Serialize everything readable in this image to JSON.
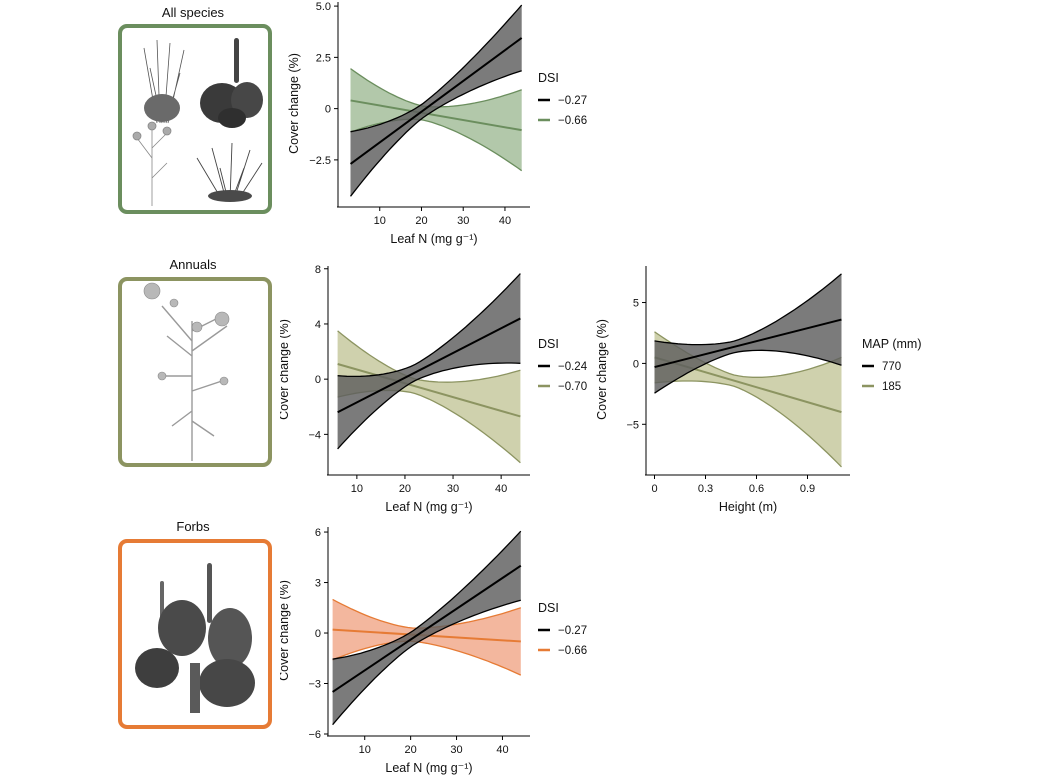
{
  "panels": {
    "all": {
      "label": "All species",
      "color": "#6b8e5e",
      "icons": [
        "grass-icon",
        "plantain-icon",
        "flower-icon",
        "tussock-icon"
      ]
    },
    "annuals": {
      "label": "Annuals",
      "color": "#8c9461",
      "icons": [
        "annual-flower-icon"
      ]
    },
    "forbs": {
      "label": "Forbs",
      "color": "#e67b35",
      "icons": [
        "plantain-icon"
      ]
    }
  },
  "chart_data": [
    {
      "type": "line",
      "panel": "All species",
      "xlabel": "Leaf N (mg g⁻¹)",
      "ylabel": "Cover change (%)",
      "xticks": [
        10,
        20,
        30,
        40
      ],
      "yticks": [
        "5.0",
        "2.5",
        "0",
        "−2.5"
      ],
      "ytick_values": [
        5.0,
        2.5,
        0,
        -2.5
      ],
      "xlim": [
        0,
        46
      ],
      "ylim": [
        -4.7,
        5.2
      ],
      "legend_title": "DSI",
      "series": [
        {
          "name": "−0.27",
          "color": "#000000",
          "fill": "#5e5e5e",
          "x": [
            3,
            44
          ],
          "mean": [
            -2.7,
            3.45
          ],
          "lower": [
            -4.3,
            1.95
          ],
          "upper": [
            -1.15,
            5.15
          ]
        },
        {
          "name": "−0.66",
          "color": "#6b8e5e",
          "fill": "#98b58d",
          "x": [
            3,
            44
          ],
          "mean": [
            0.4,
            -1.05
          ],
          "lower": [
            -1.15,
            -3.05
          ],
          "upper": [
            1.95,
            0.9
          ]
        }
      ]
    },
    {
      "type": "line",
      "panel": "Annuals",
      "xlabel": "Leaf N (mg g⁻¹)",
      "ylabel": "Cover change (%)",
      "xticks": [
        10,
        20,
        30,
        40
      ],
      "yticks": [
        "8",
        "4",
        "0",
        "−4"
      ],
      "ytick_values": [
        8,
        4,
        0,
        -4
      ],
      "xlim": [
        4,
        46
      ],
      "ylim": [
        -6.8,
        8.2
      ],
      "legend_title": "DSI",
      "series": [
        {
          "name": "−0.24",
          "color": "#000000",
          "fill": "#5e5e5e",
          "x": [
            6,
            44
          ],
          "mean": [
            -2.4,
            4.4
          ],
          "lower": [
            -5.1,
            1.2
          ],
          "upper": [
            0.2,
            7.7
          ]
        },
        {
          "name": "−0.70",
          "color": "#8c9461",
          "fill": "#bfc291",
          "x": [
            6,
            44
          ],
          "mean": [
            1.1,
            -2.7
          ],
          "lower": [
            -1.2,
            -6.1
          ],
          "upper": [
            3.6,
            0.6
          ]
        }
      ]
    },
    {
      "type": "line",
      "panel": "Annuals",
      "xlabel": "Height (m)",
      "ylabel": "Cover change (%)",
      "xticks": [
        "0",
        "0.3",
        "0.6",
        "0.9"
      ],
      "xtick_values": [
        0,
        0.3,
        0.6,
        0.9
      ],
      "yticks": [
        "5",
        "0",
        "−5"
      ],
      "ytick_values": [
        5,
        0,
        -5
      ],
      "xlim": [
        -0.05,
        1.15
      ],
      "ylim": [
        -9,
        8
      ],
      "legend_title": "MAP (mm)",
      "series": [
        {
          "name": "770",
          "color": "#000000",
          "fill": "#5e5e5e",
          "x": [
            0,
            1.1
          ],
          "mean": [
            -0.3,
            3.6
          ],
          "lower": [
            -2.5,
            -0.1
          ],
          "upper": [
            1.8,
            7.4
          ]
        },
        {
          "name": "185",
          "color": "#8c9461",
          "fill": "#bfc291",
          "x": [
            0,
            1.1
          ],
          "mean": [
            0.5,
            -4.0
          ],
          "lower": [
            -1.7,
            -8.4
          ],
          "upper": [
            2.5,
            0.6
          ]
        }
      ]
    },
    {
      "type": "line",
      "panel": "Forbs",
      "xlabel": "Leaf N (mg g⁻¹)",
      "ylabel": "Cover change (%)",
      "xticks": [
        10,
        20,
        30,
        40
      ],
      "yticks": [
        "6",
        "3",
        "0",
        "−3",
        "−6"
      ],
      "ytick_values": [
        6,
        3,
        0,
        -3,
        -6
      ],
      "xlim": [
        2,
        46
      ],
      "ylim": [
        -6.0,
        6.3
      ],
      "legend_title": "DSI",
      "series": [
        {
          "name": "−0.27",
          "color": "#000000",
          "fill": "#5e5e5e",
          "x": [
            3,
            44
          ],
          "mean": [
            -3.5,
            4.0
          ],
          "lower": [
            -5.4,
            1.9
          ],
          "upper": [
            -1.5,
            6.0
          ]
        },
        {
          "name": "−0.66",
          "color": "#e67b35",
          "fill": "#ef9f7d",
          "x": [
            3,
            44
          ],
          "mean": [
            0.2,
            -0.5
          ],
          "lower": [
            -1.6,
            -2.5
          ],
          "upper": [
            2.0,
            1.5
          ]
        }
      ]
    }
  ]
}
